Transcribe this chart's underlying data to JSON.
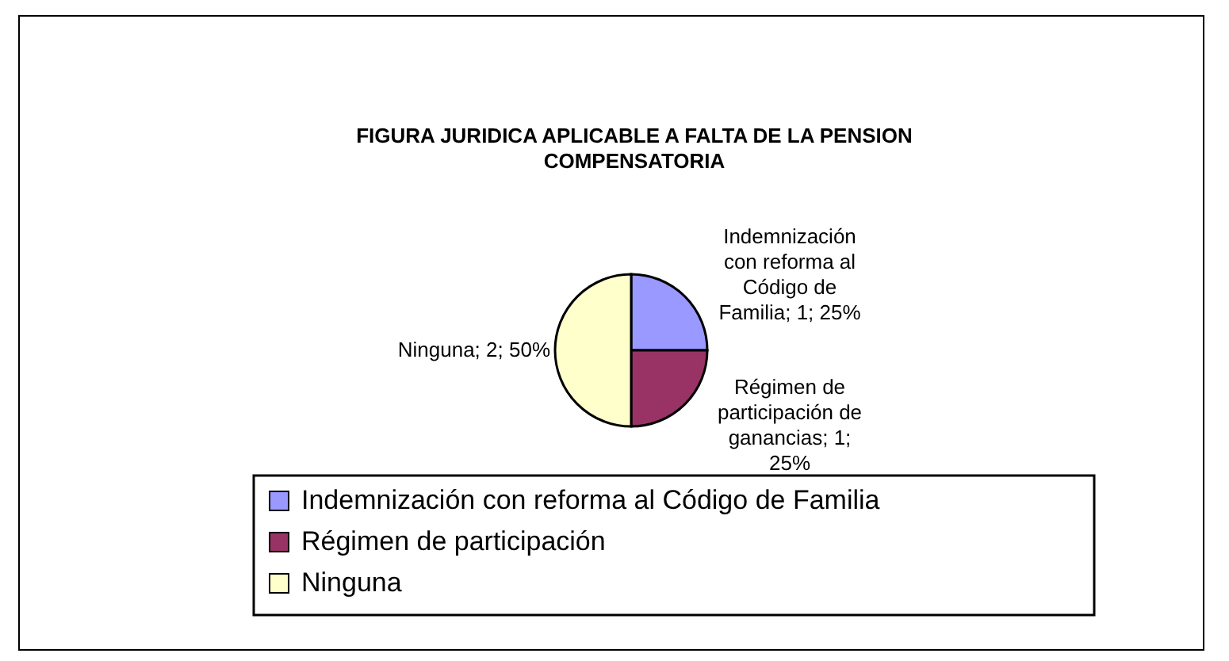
{
  "chart_data": {
    "type": "pie",
    "title": "FIGURA JURIDICA APLICABLE A FALTA DE LA PENSION COMPENSATORIA",
    "categories": [
      "Indemnización con reforma al Código de Familia",
      "Régimen de participación",
      "Ninguna"
    ],
    "values": [
      1,
      1,
      2
    ],
    "colors": [
      "#9999ff",
      "#993366",
      "#ffffcc"
    ],
    "value_labels": [
      "Indemnización con reforma al Código de Familia; 1; 25%",
      "Régimen de participación de ganancias; 1; 25%",
      "Ninguna; 2; 50%"
    ],
    "legend": "bottom"
  }
}
